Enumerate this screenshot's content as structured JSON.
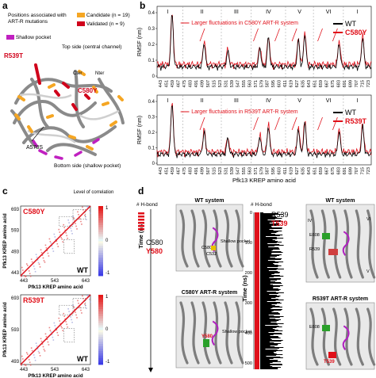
{
  "panel_letters": {
    "a": "a",
    "b": "b",
    "c": "c",
    "d": "d"
  },
  "panel_a": {
    "legend_title": "Positions associated with ART-R mutations",
    "legend_candidate": "Candidate (n = 19)",
    "legend_validated": "Validated (n = 9)",
    "legend_shallow": "Shallow pocket",
    "top_side": "Top side (central channel)",
    "bottom_side": "Bottom side (shallow pocket)",
    "label_r539t": "R539T",
    "label_c580y": "C580Y",
    "label_a578s": "A578S",
    "label_cter": "Cter",
    "label_nter": "Nter",
    "colors": {
      "candidate": "#f5a623",
      "validated": "#d0021b",
      "shallow": "#c020c0"
    }
  },
  "panel_b": {
    "ylabel": "RMSF (nm)",
    "xlabel": "Pfk13 KREP amino acid",
    "yticks": [
      "0.4",
      "0.3",
      "0.2",
      "0.1",
      "0"
    ],
    "xticks": [
      "443",
      "451",
      "459",
      "467",
      "475",
      "483",
      "491",
      "499",
      "507",
      "515",
      "523",
      "531",
      "539",
      "547",
      "555",
      "563",
      "571",
      "579",
      "587",
      "595",
      "603",
      "611",
      "619",
      "627",
      "635",
      "643",
      "651",
      "659",
      "667",
      "675",
      "683",
      "691",
      "699",
      "707",
      "715",
      "723"
    ],
    "blades": [
      "I",
      "II",
      "III",
      "IV",
      "V",
      "VI",
      "I"
    ],
    "top": {
      "note": "Larger fluctuations in C580Y ART-R system",
      "legend": [
        {
          "name": "WT",
          "color": "#000000"
        },
        {
          "name": "C580Y",
          "color": "#e0101a"
        }
      ]
    },
    "bottom": {
      "note": "Larger fluctuations in R539T ART-R system",
      "legend": [
        {
          "name": "WT",
          "color": "#000000"
        },
        {
          "name": "R539T",
          "color": "#e0101a"
        }
      ]
    }
  },
  "panel_c": {
    "colorbar_title": "Level of correlation",
    "colorbar_ticks": [
      "1",
      "0",
      "-1"
    ],
    "xlabel": "Pfk13 KREP amino acid",
    "ylabel": "Pfk13 KREP amino acid",
    "top": {
      "mutant": "C580Y",
      "wt": "WT",
      "ticks": [
        "443",
        "543",
        "643"
      ],
      "yticks": [
        "693",
        "593",
        "493",
        "443"
      ]
    },
    "bottom": {
      "mutant": "R539T",
      "wt": "WT",
      "ticks": [
        "443",
        "543",
        "643"
      ],
      "yticks": [
        "693",
        "593",
        "493"
      ]
    }
  },
  "panel_d": {
    "hbond_left": "# H-bond",
    "hbond_right": "# H-bond",
    "time_label": "Time (ns)",
    "left_res_wt": "C580",
    "left_res_mut": "Y580",
    "right_res_wt": "R539",
    "right_res_mut": "T539",
    "wt_system": "WT system",
    "c580y_system": "C580Y ART-R system",
    "wt_system_right": "WT system",
    "r539t_system": "R539T ART-R system",
    "time_ticks": [
      "0",
      "100",
      "200",
      "300",
      "400",
      "500"
    ],
    "shallow_pocket": "Shallow pocket",
    "shallow_pocket_low": "Shallow pocket",
    "lbl_c532": "C532",
    "lbl_c580": "C580",
    "lbl_y580": "Y580",
    "lbl_e608": "E608",
    "lbl_e608_low": "E608",
    "lbl_r539": "R539",
    "lbl_t539": "T539",
    "blade_iv": "IV",
    "blade_v": "V",
    "blade_vi": "VI"
  }
}
